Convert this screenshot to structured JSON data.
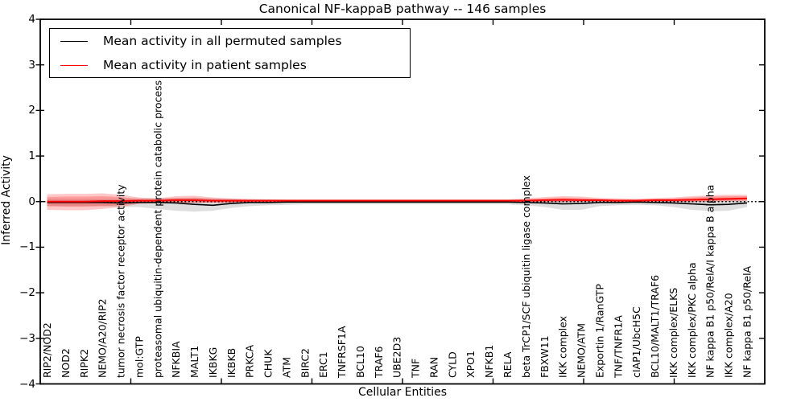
{
  "title": "Canonical NF-kappaB pathway -- 146 samples",
  "legend": {
    "items": [
      {
        "label": "Mean activity in all permuted samples",
        "color": "#000000"
      },
      {
        "label": "Mean activity in patient samples",
        "color": "#ff0000"
      }
    ]
  },
  "chart_data": {
    "type": "line",
    "title": "Canonical NF-kappaB pathway -- 146 samples",
    "xlabel": "Cellular Entities",
    "ylabel": "Inferred Activity",
    "ylim": [
      -4,
      4
    ],
    "ytick_labels": [
      "4",
      "3",
      "2",
      "1",
      "0",
      "−1",
      "−2",
      "−3",
      "−4"
    ],
    "grid": false,
    "legend_position": "upper left",
    "zero_line": true,
    "categories": [
      "RIP2/NOD2",
      "NOD2",
      "RIPK2",
      "NEMO/A20/RIP2",
      "tumor necrosis factor receptor activity",
      "mol:GTP",
      "proteasomal ubiquitin-dependent protein catabolic process",
      "NFKBIA",
      "MALT1",
      "IKBKG",
      "IKBKB",
      "PRKCA",
      "CHUK",
      "ATM",
      "BIRC2",
      "ERC1",
      "TNFRSF1A",
      "BCL10",
      "TRAF6",
      "UBE2D3",
      "TNF",
      "RAN",
      "CYLD",
      "XPO1",
      "NFKB1",
      "RELA",
      "beta TrCP1/SCF ubiquitin ligase complex",
      "FBXW11",
      "IKK complex",
      "NEMO/ATM",
      "Exportin 1/RanGTP",
      "TNF/TNFR1A",
      "cIAP1/UbcH5C",
      "BCL10/MALT1/TRAF6",
      "IKK complex/ELKS",
      "IKK complex/PKC alpha",
      "NF kappa B1 p50/RelA/I kappa B alpha",
      "IKK complex/A20",
      "NF kappa B1 p50/RelA"
    ],
    "series": [
      {
        "name": "Mean activity in all permuted samples",
        "color": "#000000",
        "values": [
          -0.02,
          -0.02,
          -0.02,
          -0.02,
          -0.03,
          -0.02,
          -0.02,
          -0.03,
          -0.06,
          -0.08,
          -0.04,
          -0.02,
          -0.02,
          -0.01,
          -0.01,
          -0.01,
          -0.01,
          -0.01,
          -0.01,
          -0.01,
          -0.01,
          -0.01,
          -0.01,
          -0.01,
          -0.01,
          -0.01,
          -0.02,
          -0.03,
          -0.05,
          -0.04,
          -0.02,
          -0.02,
          -0.01,
          -0.02,
          -0.03,
          -0.05,
          -0.07,
          -0.06,
          -0.03
        ]
      },
      {
        "name": "Mean activity in patient samples",
        "color": "#ff0000",
        "values": [
          0.0,
          0.0,
          0.0,
          0.01,
          0.01,
          0.02,
          0.02,
          0.03,
          0.03,
          0.02,
          0.02,
          0.02,
          0.02,
          0.02,
          0.02,
          0.02,
          0.02,
          0.02,
          0.02,
          0.02,
          0.02,
          0.02,
          0.02,
          0.02,
          0.02,
          0.02,
          0.02,
          0.03,
          0.04,
          0.03,
          0.03,
          0.02,
          0.02,
          0.03,
          0.03,
          0.04,
          0.05,
          0.06,
          0.07
        ]
      }
    ],
    "bands": [
      {
        "name": "permuted-spread",
        "fill": "#000000",
        "opacity": 0.13,
        "upper": [
          0.06,
          0.06,
          0.06,
          0.06,
          0.06,
          0.07,
          0.08,
          0.08,
          0.08,
          0.07,
          0.06,
          0.05,
          0.05,
          0.04,
          0.04,
          0.04,
          0.04,
          0.04,
          0.04,
          0.04,
          0.04,
          0.04,
          0.04,
          0.04,
          0.04,
          0.04,
          0.05,
          0.05,
          0.06,
          0.06,
          0.05,
          0.04,
          0.04,
          0.04,
          0.05,
          0.05,
          0.05,
          0.05,
          0.04
        ],
        "lower": [
          -0.1,
          -0.1,
          -0.1,
          -0.1,
          -0.12,
          -0.12,
          -0.16,
          -0.2,
          -0.22,
          -0.2,
          -0.14,
          -0.1,
          -0.08,
          -0.07,
          -0.06,
          -0.06,
          -0.06,
          -0.06,
          -0.06,
          -0.06,
          -0.06,
          -0.06,
          -0.06,
          -0.06,
          -0.06,
          -0.06,
          -0.08,
          -0.12,
          -0.18,
          -0.18,
          -0.1,
          -0.08,
          -0.07,
          -0.08,
          -0.12,
          -0.18,
          -0.21,
          -0.2,
          -0.12
        ]
      },
      {
        "name": "patient-spread-outer",
        "fill": "#ff0000",
        "opacity": 0.22,
        "upper": [
          0.16,
          0.17,
          0.17,
          0.18,
          0.15,
          0.09,
          0.07,
          0.12,
          0.13,
          0.09,
          0.07,
          0.06,
          0.05,
          0.05,
          0.05,
          0.05,
          0.05,
          0.05,
          0.05,
          0.05,
          0.05,
          0.05,
          0.05,
          0.05,
          0.05,
          0.05,
          0.07,
          0.1,
          0.12,
          0.11,
          0.08,
          0.07,
          0.06,
          0.08,
          0.09,
          0.12,
          0.14,
          0.15,
          0.15
        ],
        "lower": [
          -0.18,
          -0.19,
          -0.19,
          -0.16,
          -0.12,
          -0.05,
          -0.03,
          -0.03,
          -0.03,
          -0.03,
          -0.03,
          -0.02,
          -0.02,
          -0.02,
          -0.01,
          -0.01,
          -0.01,
          -0.01,
          -0.01,
          -0.01,
          -0.01,
          -0.01,
          -0.01,
          -0.01,
          -0.01,
          -0.01,
          -0.01,
          -0.01,
          -0.01,
          -0.01,
          -0.01,
          -0.01,
          -0.01,
          -0.01,
          -0.01,
          -0.01,
          -0.01,
          0.0,
          0.01
        ]
      },
      {
        "name": "patient-spread-inner",
        "fill": "#ff0000",
        "opacity": 0.22,
        "upper": [
          0.1,
          0.11,
          0.11,
          0.12,
          0.1,
          0.06,
          0.05,
          0.08,
          0.09,
          0.06,
          0.05,
          0.04,
          0.04,
          0.04,
          0.04,
          0.04,
          0.04,
          0.04,
          0.04,
          0.04,
          0.04,
          0.04,
          0.04,
          0.04,
          0.04,
          0.04,
          0.05,
          0.07,
          0.09,
          0.08,
          0.06,
          0.05,
          0.05,
          0.06,
          0.07,
          0.09,
          0.11,
          0.12,
          0.12
        ],
        "lower": [
          -0.1,
          -0.11,
          -0.11,
          -0.1,
          -0.08,
          -0.03,
          -0.02,
          -0.02,
          -0.02,
          -0.02,
          -0.02,
          -0.01,
          -0.01,
          -0.01,
          0.0,
          0.0,
          0.0,
          0.0,
          0.0,
          0.0,
          0.0,
          0.0,
          0.0,
          0.0,
          0.0,
          0.0,
          0.0,
          0.0,
          0.0,
          0.0,
          0.0,
          0.0,
          0.0,
          0.0,
          0.0,
          0.0,
          0.01,
          0.02,
          0.03
        ]
      }
    ]
  }
}
